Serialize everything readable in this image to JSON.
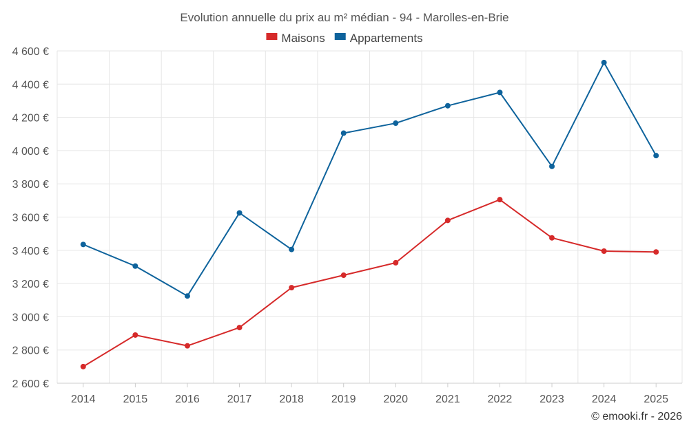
{
  "chart_data": {
    "type": "line",
    "title": "Evolution annuelle du prix au m² médian - 94 - Marolles-en-Brie",
    "categories": [
      "2014",
      "2015",
      "2016",
      "2017",
      "2018",
      "2019",
      "2020",
      "2021",
      "2022",
      "2023",
      "2024",
      "2025"
    ],
    "series": [
      {
        "name": "Maisons",
        "color": "#d62a2a",
        "values": [
          2700,
          2890,
          2825,
          2935,
          3175,
          3250,
          3325,
          3580,
          3705,
          3475,
          3395,
          3390
        ]
      },
      {
        "name": "Appartements",
        "color": "#0e639c",
        "values": [
          3435,
          3305,
          3125,
          3625,
          3405,
          4105,
          4165,
          4270,
          4350,
          3905,
          4530,
          3970
        ]
      }
    ],
    "ylim": [
      2600,
      4600
    ],
    "yticks": [
      2600,
      2800,
      3000,
      3200,
      3400,
      3600,
      3800,
      4000,
      4200,
      4400,
      4600
    ],
    "ytick_labels": [
      "2 600 €",
      "2 800 €",
      "3 000 €",
      "3 200 €",
      "3 400 €",
      "3 600 €",
      "3 800 €",
      "4 000 €",
      "4 200 €",
      "4 400 €",
      "4 600 €"
    ],
    "xlabel": "",
    "ylabel": "",
    "grid": true,
    "legend": "top-center"
  },
  "credit": "© emooki.fr - 2026"
}
